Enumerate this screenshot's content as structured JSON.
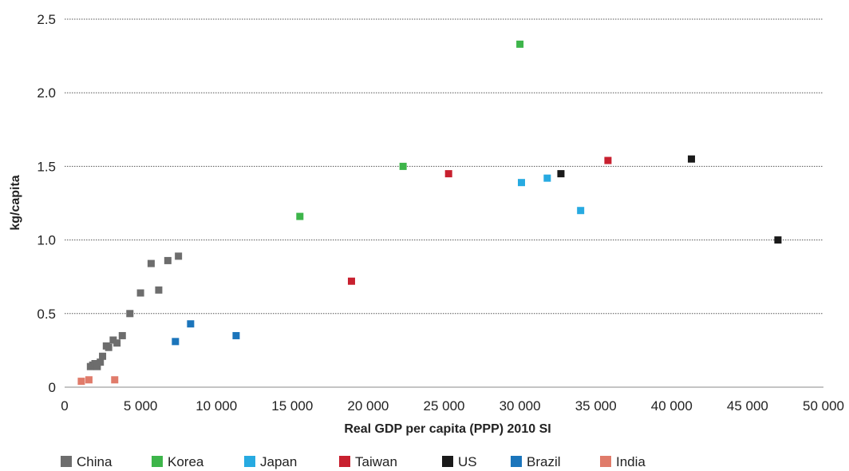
{
  "chart_data": {
    "type": "scatter",
    "title": "",
    "xlabel": "Real GDP per capita (PPP) 2010 SI",
    "ylabel": "kg/capita",
    "xlim": [
      0,
      50000
    ],
    "ylim": [
      0,
      2.5
    ],
    "x_ticks": [
      0,
      5000,
      10000,
      15000,
      20000,
      25000,
      30000,
      35000,
      40000,
      45000,
      50000
    ],
    "x_tick_labels": [
      "0",
      "5 000",
      "10 000",
      "15 000",
      "20 000",
      "25 000",
      "30 000",
      "35 000",
      "40 000",
      "45 000",
      "50 000"
    ],
    "y_ticks": [
      0,
      0.5,
      1.0,
      1.5,
      2.0,
      2.5
    ],
    "y_tick_labels": [
      "0",
      "0.5",
      "1.0",
      "1.5",
      "2.0",
      "2.5"
    ],
    "grid": "horizontal",
    "legend_position": "bottom",
    "series": [
      {
        "name": "China",
        "color": "#6d6d6d",
        "points": [
          [
            1700,
            0.14
          ],
          [
            1850,
            0.15
          ],
          [
            2000,
            0.16
          ],
          [
            2150,
            0.14
          ],
          [
            2350,
            0.17
          ],
          [
            2500,
            0.21
          ],
          [
            2750,
            0.28
          ],
          [
            2900,
            0.27
          ],
          [
            3200,
            0.32
          ],
          [
            3450,
            0.3
          ],
          [
            3800,
            0.35
          ],
          [
            4300,
            0.5
          ],
          [
            5000,
            0.64
          ],
          [
            5700,
            0.84
          ],
          [
            6200,
            0.66
          ],
          [
            6800,
            0.86
          ],
          [
            7500,
            0.89
          ]
        ]
      },
      {
        "name": "Korea",
        "color": "#3db54a",
        "points": [
          [
            15500,
            1.16
          ],
          [
            22300,
            1.5
          ],
          [
            30000,
            2.33
          ]
        ]
      },
      {
        "name": "Japan",
        "color": "#27aae1",
        "points": [
          [
            30100,
            1.39
          ],
          [
            31800,
            1.42
          ],
          [
            34000,
            1.2
          ]
        ]
      },
      {
        "name": "Taiwan",
        "color": "#c8202f",
        "points": [
          [
            18900,
            0.72
          ],
          [
            25300,
            1.45
          ],
          [
            35800,
            1.54
          ]
        ]
      },
      {
        "name": "US",
        "color": "#1a1a1a",
        "points": [
          [
            32700,
            1.45
          ],
          [
            41300,
            1.55
          ],
          [
            47000,
            1.0
          ]
        ]
      },
      {
        "name": "Brazil",
        "color": "#1b75bb",
        "points": [
          [
            7300,
            0.31
          ],
          [
            8300,
            0.43
          ],
          [
            11300,
            0.35
          ]
        ]
      },
      {
        "name": "India",
        "color": "#e07b6a",
        "points": [
          [
            1100,
            0.04
          ],
          [
            1600,
            0.05
          ],
          [
            3300,
            0.05
          ]
        ]
      }
    ]
  }
}
